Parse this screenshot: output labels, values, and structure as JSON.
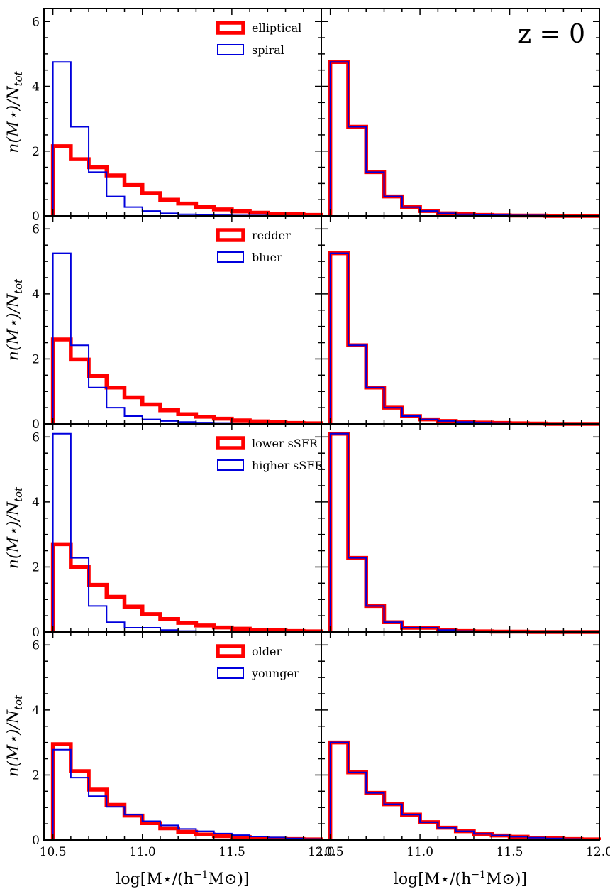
{
  "figure": {
    "annotation": "z = 0",
    "y_axis_label": "n(M⋆)/N",
    "y_axis_label_sub": "tot",
    "x_axis_label_left": "log[M⋆/(h",
    "x_axis_label_sup": "−1",
    "x_axis_label_right": "M⊙)]"
  },
  "colors": {
    "red": "#ff0000",
    "blue": "#0000dd"
  },
  "chart_data": {
    "type": "histogram",
    "bin_edges": [
      10.5,
      10.6,
      10.7,
      10.8,
      10.9,
      11.0,
      11.1,
      11.2,
      11.3,
      11.4,
      11.5,
      11.6,
      11.7,
      11.8,
      11.9,
      12.0
    ],
    "xlim": [
      10.45,
      12.0
    ],
    "ylim": [
      0,
      6.4
    ],
    "x_ticks": [
      10.5,
      11.0,
      11.5,
      12.0
    ],
    "x_tick_labels": [
      "10.5",
      "11.0",
      "11.5",
      "12.0"
    ],
    "y_ticks": [
      0,
      2,
      4,
      6
    ],
    "y_tick_labels": [
      "0",
      "2",
      "4",
      "6"
    ],
    "rows": [
      {
        "legend": [
          "elliptical",
          "spiral"
        ],
        "left": {
          "red": [
            2.15,
            1.75,
            1.5,
            1.25,
            0.95,
            0.7,
            0.5,
            0.38,
            0.28,
            0.2,
            0.14,
            0.1,
            0.07,
            0.05,
            0.03
          ],
          "blue": [
            4.75,
            2.75,
            1.35,
            0.6,
            0.27,
            0.15,
            0.08,
            0.05,
            0.03,
            0.02,
            0.01,
            0.01,
            0.0,
            0.0,
            0.0
          ]
        },
        "right": {
          "red": [
            4.75,
            2.75,
            1.35,
            0.6,
            0.27,
            0.15,
            0.08,
            0.05,
            0.03,
            0.02,
            0.01,
            0.01,
            0.0,
            0.0,
            0.0
          ],
          "blue": [
            4.75,
            2.75,
            1.35,
            0.6,
            0.27,
            0.15,
            0.08,
            0.05,
            0.03,
            0.02,
            0.01,
            0.01,
            0.0,
            0.0,
            0.0
          ]
        }
      },
      {
        "legend": [
          "redder",
          "bluer"
        ],
        "left": {
          "red": [
            2.6,
            1.98,
            1.48,
            1.12,
            0.82,
            0.6,
            0.42,
            0.3,
            0.22,
            0.16,
            0.11,
            0.08,
            0.05,
            0.03,
            0.02
          ],
          "blue": [
            5.25,
            2.42,
            1.12,
            0.5,
            0.24,
            0.14,
            0.09,
            0.06,
            0.04,
            0.03,
            0.02,
            0.01,
            0.0,
            0.0,
            0.0
          ]
        },
        "right": {
          "red": [
            5.25,
            2.42,
            1.12,
            0.5,
            0.24,
            0.14,
            0.09,
            0.06,
            0.04,
            0.03,
            0.02,
            0.01,
            0.0,
            0.0,
            0.0
          ],
          "blue": [
            5.25,
            2.42,
            1.12,
            0.5,
            0.24,
            0.14,
            0.09,
            0.06,
            0.04,
            0.03,
            0.02,
            0.01,
            0.0,
            0.0,
            0.0
          ]
        }
      },
      {
        "legend": [
          "lower sSFR",
          "higher sSFR"
        ],
        "left": {
          "red": [
            2.7,
            2.0,
            1.45,
            1.08,
            0.78,
            0.55,
            0.4,
            0.28,
            0.2,
            0.14,
            0.1,
            0.07,
            0.05,
            0.03,
            0.02
          ],
          "blue": [
            6.1,
            2.28,
            0.8,
            0.3,
            0.13,
            0.13,
            0.06,
            0.03,
            0.02,
            0.01,
            0.01,
            0.0,
            0.0,
            0.0,
            0.0
          ]
        },
        "right": {
          "red": [
            6.1,
            2.28,
            0.8,
            0.3,
            0.13,
            0.13,
            0.06,
            0.03,
            0.02,
            0.01,
            0.01,
            0.0,
            0.0,
            0.0,
            0.0
          ],
          "blue": [
            6.1,
            2.28,
            0.8,
            0.3,
            0.13,
            0.13,
            0.06,
            0.03,
            0.02,
            0.01,
            0.01,
            0.0,
            0.0,
            0.0,
            0.0
          ]
        }
      },
      {
        "legend": [
          "older",
          "younger"
        ],
        "left": {
          "red": [
            2.95,
            2.12,
            1.55,
            1.08,
            0.75,
            0.52,
            0.36,
            0.25,
            0.17,
            0.12,
            0.09,
            0.06,
            0.04,
            0.03,
            0.02
          ],
          "blue": [
            2.78,
            1.92,
            1.35,
            1.02,
            0.78,
            0.58,
            0.45,
            0.34,
            0.27,
            0.2,
            0.15,
            0.11,
            0.08,
            0.05,
            0.03
          ]
        },
        "right": {
          "red": [
            3.0,
            2.08,
            1.45,
            1.1,
            0.78,
            0.55,
            0.38,
            0.27,
            0.19,
            0.14,
            0.1,
            0.07,
            0.05,
            0.03,
            0.02
          ],
          "blue": [
            3.0,
            2.08,
            1.45,
            1.1,
            0.78,
            0.55,
            0.38,
            0.27,
            0.19,
            0.14,
            0.1,
            0.07,
            0.05,
            0.03,
            0.02
          ]
        }
      }
    ]
  }
}
